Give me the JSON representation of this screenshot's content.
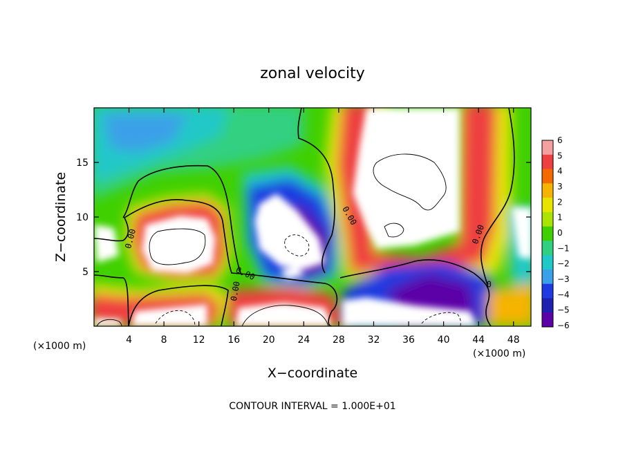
{
  "chart_data": {
    "type": "heatmap",
    "title": "zonal velocity",
    "xlabel": "X−coordinate",
    "ylabel": "Z−coordinate",
    "x_unit_left": "(×1000 m)",
    "x_unit_right": "(×1000 m)",
    "xlim": [
      0,
      50
    ],
    "ylim": [
      0,
      20
    ],
    "xticks": [
      {
        "v": 4,
        "label": "4"
      },
      {
        "v": 8,
        "label": "8"
      },
      {
        "v": 12,
        "label": "12"
      },
      {
        "v": 16,
        "label": "16"
      },
      {
        "v": 20,
        "label": "20"
      },
      {
        "v": 24,
        "label": "24"
      },
      {
        "v": 28,
        "label": "28"
      },
      {
        "v": 32,
        "label": "32"
      },
      {
        "v": 36,
        "label": "36"
      },
      {
        "v": 40,
        "label": "40"
      },
      {
        "v": 44,
        "label": "44"
      },
      {
        "v": 48,
        "label": "48"
      }
    ],
    "yticks": [
      {
        "v": 5,
        "label": "5"
      },
      {
        "v": 10,
        "label": "10"
      },
      {
        "v": 15,
        "label": "15"
      }
    ],
    "colorbar": {
      "levels": [
        6,
        5,
        4,
        3,
        2,
        1,
        0,
        -1,
        -2,
        -3,
        -4,
        -5,
        -6
      ],
      "labels": [
        "6",
        "5",
        "4",
        "3",
        "2",
        "1",
        "0",
        "−1",
        "−2",
        "−3",
        "−4",
        "−5",
        "−6"
      ],
      "colors": [
        "#f4a0a0",
        "#ee4040",
        "#f46a00",
        "#f4b400",
        "#e8e400",
        "#aae400",
        "#40d000",
        "#30d080",
        "#20c8c8",
        "#3aa0e8",
        "#1e3ae0",
        "#2020b0",
        "#5c00a8"
      ],
      "out_of_range_color": "#ffffff"
    },
    "contour_labels": [
      {
        "x": 4.2,
        "y": 8.0,
        "text": "0.00",
        "rotate": -75
      },
      {
        "x": 17.3,
        "y": 4.8,
        "text": "0.00",
        "rotate": 25
      },
      {
        "x": 16.2,
        "y": 3.2,
        "text": "0.00",
        "rotate": -80
      },
      {
        "x": 29.2,
        "y": 10.1,
        "text": "0.00",
        "rotate": 60
      },
      {
        "x": 44.0,
        "y": 8.4,
        "text": "0.00",
        "rotate": -70
      },
      {
        "x": 45.2,
        "y": 3.8,
        "text": "0",
        "rotate": 0
      }
    ],
    "grid": false,
    "footer": "CONTOUR INTERVAL = 1.000E+01"
  }
}
